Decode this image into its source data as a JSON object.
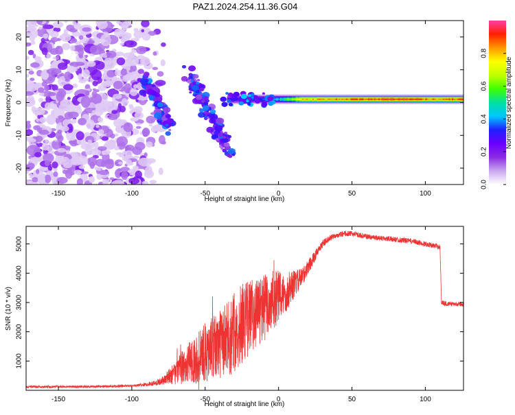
{
  "title": "PAZ1.2024.254.11.36.G04",
  "colorbar": {
    "label": "Normalized spectral amplitude",
    "ticks": [
      "0.0",
      "0.2",
      "0.4",
      "0.6",
      "0.8"
    ],
    "tick_values": [
      0.0,
      0.2,
      0.4,
      0.6,
      0.8
    ],
    "range": [
      0,
      1
    ],
    "colormap": [
      "#ffffff",
      "#c9a7ef",
      "#8a2be2",
      "#6a00ff",
      "#2020ff",
      "#00c8ff",
      "#00e0a0",
      "#40ff00",
      "#c0ff00",
      "#ffff00",
      "#ff9900",
      "#ff2000",
      "#ff3ca8"
    ]
  },
  "chart_data": [
    {
      "type": "heatmap",
      "name": "spectrogram",
      "title": "",
      "xlabel": "Height of straight line (km)",
      "ylabel": "Frequency (Hz)",
      "xlim": [
        -172,
        126
      ],
      "ylim": [
        -25,
        25
      ],
      "xticks": [
        -150,
        -100,
        -50,
        0,
        50,
        100
      ],
      "yticks": [
        -20,
        -10,
        0,
        10,
        20
      ],
      "grid": false,
      "features": {
        "noise_region_x": [
          -172,
          -78
        ],
        "diagonal_track_1": {
          "x": [
            -93,
            -73
          ],
          "y": [
            8,
            -8
          ],
          "amplitude": 0.3
        },
        "diagonal_track_2": {
          "x": [
            -62,
            -33
          ],
          "y": [
            9,
            -15
          ],
          "amplitude": 0.3
        },
        "carrier_line": {
          "x": [
            -35,
            126
          ],
          "y": 1,
          "amplitude_by_x": [
            [
              -30,
              0.3
            ],
            [
              0,
              0.45
            ],
            [
              15,
              0.8
            ],
            [
              85,
              0.95
            ],
            [
              105,
              0.85
            ],
            [
              125,
              0.9
            ]
          ]
        }
      }
    },
    {
      "type": "line",
      "name": "snr",
      "title": "",
      "xlabel": "Height of straight line (km)",
      "ylabel": "SNR (10 * v/v)",
      "xlim": [
        -172,
        126
      ],
      "ylim": [
        0,
        5600
      ],
      "xticks": [
        -150,
        -100,
        -50,
        0,
        50,
        100
      ],
      "yticks": [
        1000,
        2000,
        3000,
        4000,
        5000
      ],
      "grid": false,
      "color": "#ee3333",
      "series": [
        {
          "x": [
            -172,
            -150,
            -120,
            -100,
            -90,
            -80,
            -75,
            -70,
            -65,
            -60,
            -55,
            -50,
            -45,
            -40,
            -35,
            -30,
            -25,
            -20,
            -15,
            -10,
            -5,
            0,
            5,
            10,
            15,
            20,
            25,
            30,
            35,
            40,
            45,
            50,
            55,
            60,
            70,
            80,
            90,
            100,
            110,
            111,
            115,
            126
          ],
          "y": [
            120,
            120,
            130,
            150,
            200,
            300,
            450,
            600,
            800,
            1000,
            1100,
            1300,
            1400,
            1600,
            1700,
            2000,
            2300,
            2500,
            2700,
            2800,
            3000,
            3200,
            3300,
            3600,
            3800,
            4200,
            4600,
            5000,
            5200,
            5300,
            5350,
            5350,
            5300,
            5250,
            5200,
            5150,
            5100,
            5000,
            4900,
            3000,
            2950,
            2950
          ],
          "noise_amplitude": [
            40,
            40,
            40,
            40,
            60,
            120,
            250,
            400,
            600,
            700,
            900,
            1000,
            1100,
            1200,
            1300,
            1400,
            1400,
            1300,
            1200,
            1200,
            1100,
            900,
            700,
            500,
            350,
            250,
            180,
            130,
            100,
            90,
            90,
            90,
            90,
            90,
            90,
            90,
            90,
            90,
            90,
            80,
            80,
            80
          ]
        }
      ]
    }
  ]
}
